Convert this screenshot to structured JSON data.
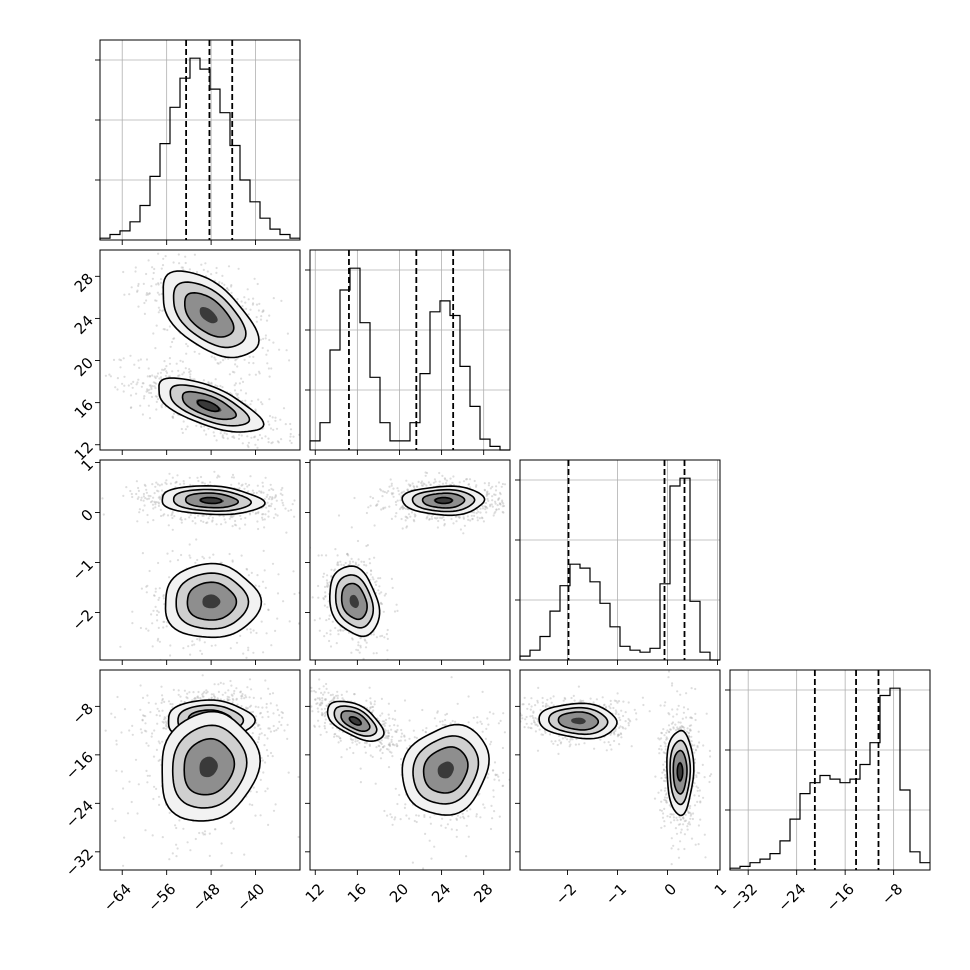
{
  "chart_data": {
    "type": "corner",
    "title": "",
    "parameters": [
      {
        "name": "p0",
        "label": "",
        "range": [
          -68,
          -32
        ],
        "ticks": [
          -64,
          -56,
          -48,
          -40
        ],
        "quantiles": [
          -52.5,
          -48.3,
          -44.2
        ],
        "hist": [
          0.01,
          0.03,
          0.05,
          0.1,
          0.19,
          0.35,
          0.53,
          0.73,
          0.89,
          1.0,
          0.94,
          0.83,
          0.7,
          0.52,
          0.33,
          0.21,
          0.12,
          0.06,
          0.03,
          0.01
        ]
      },
      {
        "name": "p1",
        "label": "",
        "range": [
          11.5,
          30.5
        ],
        "ticks": [
          12,
          16,
          20,
          24,
          28
        ],
        "quantiles": [
          15.2,
          21.6,
          25.1
        ],
        "hist": [
          0.05,
          0.15,
          0.55,
          0.88,
          1.0,
          0.7,
          0.4,
          0.15,
          0.05,
          0.05,
          0.15,
          0.42,
          0.76,
          0.82,
          0.74,
          0.46,
          0.24,
          0.06,
          0.02,
          0.0
        ]
      },
      {
        "name": "p2",
        "label": "",
        "range": [
          -2.95,
          1.05
        ],
        "ticks": [
          -2,
          -1,
          0,
          1
        ],
        "quantiles": [
          -1.98,
          -0.06,
          0.34
        ],
        "hist": [
          0.02,
          0.05,
          0.12,
          0.25,
          0.38,
          0.49,
          0.47,
          0.4,
          0.29,
          0.17,
          0.07,
          0.05,
          0.04,
          0.06,
          0.39,
          0.89,
          0.93,
          0.3,
          0.04,
          0.0
        ]
      },
      {
        "name": "p3",
        "label": "",
        "range": [
          -35,
          -2
        ],
        "ticks": [
          -32,
          -24,
          -16,
          -8
        ],
        "quantiles": [
          -21.0,
          -14.2,
          -10.5
        ],
        "hist": [
          0.01,
          0.02,
          0.04,
          0.06,
          0.09,
          0.16,
          0.28,
          0.42,
          0.48,
          0.52,
          0.5,
          0.48,
          0.5,
          0.58,
          0.7,
          0.96,
          1.0,
          0.44,
          0.1,
          0.04
        ]
      }
    ],
    "pairs": [
      {
        "x": 0,
        "y": 1,
        "modes": [
          {
            "cx": -48.5,
            "cy": 24.3,
            "sx": 4.2,
            "sy": 2.0,
            "rho": -0.55,
            "w": 1.0
          },
          {
            "cx": -48.5,
            "cy": 15.7,
            "sx": 4.6,
            "sy": 1.25,
            "rho": -0.65,
            "w": 1.25
          }
        ]
      },
      {
        "x": 0,
        "y": 2,
        "modes": [
          {
            "cx": -48.0,
            "cy": 0.24,
            "sx": 4.5,
            "sy": 0.14,
            "rho": -0.15,
            "w": 1.35
          },
          {
            "cx": -48.0,
            "cy": -1.78,
            "sx": 4.2,
            "sy": 0.36,
            "rho": 0.0,
            "w": 0.75
          }
        ]
      },
      {
        "x": 0,
        "y": 3,
        "modes": [
          {
            "cx": -48.3,
            "cy": -10.3,
            "sx": 3.8,
            "sy": 1.6,
            "rho": 0.0,
            "w": 1.35
          },
          {
            "cx": -48.5,
            "cy": -18.0,
            "sx": 4.3,
            "sy": 4.4,
            "rho": 0.1,
            "w": 0.8
          }
        ]
      },
      {
        "x": 1,
        "y": 2,
        "modes": [
          {
            "cx": 24.2,
            "cy": 0.24,
            "sx": 1.9,
            "sy": 0.14,
            "rho": 0.0,
            "w": 1.35
          },
          {
            "cx": 15.7,
            "cy": -1.78,
            "sx": 1.15,
            "sy": 0.34,
            "rho": -0.25,
            "w": 0.85
          }
        ]
      },
      {
        "x": 1,
        "y": 3,
        "modes": [
          {
            "cx": 15.8,
            "cy": -10.4,
            "sx": 1.3,
            "sy": 1.6,
            "rho": -0.55,
            "w": 1.3
          },
          {
            "cx": 24.4,
            "cy": -18.5,
            "sx": 2.0,
            "sy": 3.6,
            "rho": 0.15,
            "w": 0.8
          }
        ]
      },
      {
        "x": 2,
        "y": 3,
        "modes": [
          {
            "cx": -1.78,
            "cy": -10.4,
            "sx": 0.38,
            "sy": 1.4,
            "rho": -0.1,
            "w": 1.0
          },
          {
            "cx": 0.25,
            "cy": -18.8,
            "sx": 0.13,
            "sy": 3.4,
            "rho": 0.0,
            "w": 1.25
          }
        ]
      }
    ]
  }
}
